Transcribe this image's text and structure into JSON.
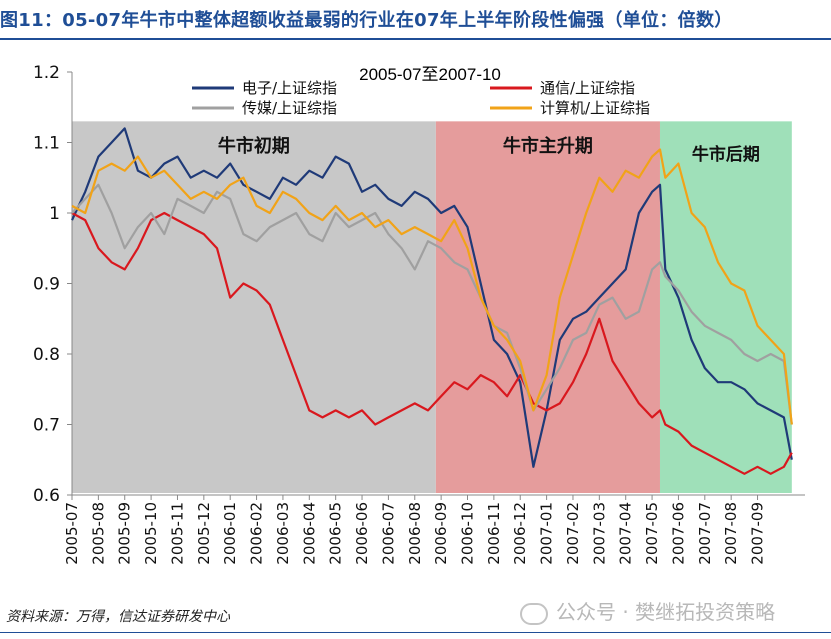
{
  "header": {
    "title": "图11：05-07年牛市中整体超额收益最弱的行业在07年上半年阶段性偏强（单位：倍数）"
  },
  "footer": {
    "source": "资料来源：万得，信达证券研发中心",
    "watermark": "公众号 · 樊继拓投资策略"
  },
  "chart_data": {
    "type": "line",
    "title": "2005-07至2007-10",
    "ylim": [
      0.6,
      1.2
    ],
    "yticks": [
      0.6,
      0.7,
      0.8,
      0.9,
      1,
      1.1,
      1.2
    ],
    "ytick_labels": [
      "0.6",
      "0.7",
      "0.8",
      "0.9",
      "1",
      "1.1",
      "1.2"
    ],
    "xlim": [
      0,
      27.8
    ],
    "x_categories": [
      "2005-07",
      "2005-08",
      "2005-09",
      "2005-10",
      "2005-11",
      "2005-12",
      "2006-01",
      "2006-02",
      "2006-03",
      "2006-04",
      "2006-05",
      "2006-06",
      "2006-07",
      "2006-08",
      "2006-09",
      "2006-10",
      "2006-11",
      "2006-12",
      "2007-01",
      "2007-02",
      "2007-03",
      "2007-04",
      "2007-05",
      "2007-06",
      "2007-07",
      "2007-08",
      "2007-09"
    ],
    "grid": false,
    "legend_position": "top",
    "phases": [
      {
        "label": "牛市初期",
        "x_start": 0,
        "x_end": 13.8,
        "color": "#c8c8c8"
      },
      {
        "label": "牛市主升期",
        "x_start": 13.8,
        "x_end": 22.3,
        "color": "#e59c9c"
      },
      {
        "label": "牛市后期",
        "x_start": 22.3,
        "x_end": 27.3,
        "color": "#9fe0b9"
      }
    ],
    "series": [
      {
        "name": "电子/上证综指",
        "color": "#1f3a78",
        "x": [
          0,
          0.5,
          1,
          1.5,
          2,
          2.5,
          3,
          3.5,
          4,
          4.5,
          5,
          5.5,
          6,
          6.5,
          7,
          7.5,
          8,
          8.5,
          9,
          9.5,
          10,
          10.5,
          11,
          11.5,
          12,
          12.5,
          13,
          13.5,
          14,
          14.5,
          15,
          15.5,
          16,
          16.5,
          17,
          17.5,
          18,
          18.5,
          19,
          19.5,
          20,
          20.5,
          21,
          21.5,
          22,
          22.3,
          22.5,
          23,
          23.5,
          24,
          24.5,
          25,
          25.5,
          26,
          26.5,
          27,
          27.3
        ],
        "values": [
          0.99,
          1.03,
          1.08,
          1.1,
          1.12,
          1.06,
          1.05,
          1.07,
          1.08,
          1.05,
          1.06,
          1.05,
          1.07,
          1.04,
          1.03,
          1.02,
          1.05,
          1.04,
          1.06,
          1.05,
          1.08,
          1.07,
          1.03,
          1.04,
          1.02,
          1.01,
          1.03,
          1.02,
          1.0,
          1.01,
          0.98,
          0.9,
          0.82,
          0.8,
          0.76,
          0.64,
          0.72,
          0.82,
          0.85,
          0.86,
          0.88,
          0.9,
          0.92,
          1.0,
          1.03,
          1.04,
          0.92,
          0.88,
          0.82,
          0.78,
          0.76,
          0.76,
          0.75,
          0.73,
          0.72,
          0.71,
          0.65
        ]
      },
      {
        "name": "通信/上证综指",
        "color": "#d9181e",
        "x": [
          0,
          0.5,
          1,
          1.5,
          2,
          2.5,
          3,
          3.5,
          4,
          4.5,
          5,
          5.5,
          6,
          6.5,
          7,
          7.5,
          8,
          8.5,
          9,
          9.5,
          10,
          10.5,
          11,
          11.5,
          12,
          12.5,
          13,
          13.5,
          14,
          14.5,
          15,
          15.5,
          16,
          16.5,
          17,
          17.5,
          18,
          18.5,
          19,
          19.5,
          20,
          20.5,
          21,
          21.5,
          22,
          22.3,
          22.5,
          23,
          23.5,
          24,
          24.5,
          25,
          25.5,
          26,
          26.5,
          27,
          27.3
        ],
        "values": [
          1.0,
          0.99,
          0.95,
          0.93,
          0.92,
          0.95,
          0.99,
          1.0,
          0.99,
          0.98,
          0.97,
          0.95,
          0.88,
          0.9,
          0.89,
          0.87,
          0.82,
          0.77,
          0.72,
          0.71,
          0.72,
          0.71,
          0.72,
          0.7,
          0.71,
          0.72,
          0.73,
          0.72,
          0.74,
          0.76,
          0.75,
          0.77,
          0.76,
          0.74,
          0.77,
          0.73,
          0.72,
          0.73,
          0.76,
          0.8,
          0.85,
          0.79,
          0.76,
          0.73,
          0.71,
          0.72,
          0.7,
          0.69,
          0.67,
          0.66,
          0.65,
          0.64,
          0.63,
          0.64,
          0.63,
          0.64,
          0.66
        ]
      },
      {
        "name": "传媒/上证综指",
        "color": "#a0a0a0",
        "x": [
          0,
          0.5,
          1,
          1.5,
          2,
          2.5,
          3,
          3.5,
          4,
          4.5,
          5,
          5.5,
          6,
          6.5,
          7,
          7.5,
          8,
          8.5,
          9,
          9.5,
          10,
          10.5,
          11,
          11.5,
          12,
          12.5,
          13,
          13.5,
          14,
          14.5,
          15,
          15.5,
          16,
          16.5,
          17,
          17.5,
          18,
          18.5,
          19,
          19.5,
          20,
          20.5,
          21,
          21.5,
          22,
          22.3,
          22.5,
          23,
          23.5,
          24,
          24.5,
          25,
          25.5,
          26,
          26.5,
          27,
          27.3
        ],
        "values": [
          1.0,
          1.02,
          1.04,
          1.0,
          0.95,
          0.98,
          1.0,
          0.97,
          1.02,
          1.01,
          1.0,
          1.03,
          1.02,
          0.97,
          0.96,
          0.98,
          0.99,
          1.0,
          0.97,
          0.96,
          1.0,
          0.98,
          0.99,
          1.0,
          0.97,
          0.95,
          0.92,
          0.96,
          0.95,
          0.93,
          0.92,
          0.88,
          0.84,
          0.83,
          0.78,
          0.72,
          0.75,
          0.78,
          0.82,
          0.83,
          0.87,
          0.88,
          0.85,
          0.86,
          0.92,
          0.93,
          0.91,
          0.89,
          0.86,
          0.84,
          0.83,
          0.82,
          0.8,
          0.79,
          0.8,
          0.79,
          0.7
        ]
      },
      {
        "name": "计算机/上证综指",
        "color": "#f1a318",
        "x": [
          0,
          0.5,
          1,
          1.5,
          2,
          2.5,
          3,
          3.5,
          4,
          4.5,
          5,
          5.5,
          6,
          6.5,
          7,
          7.5,
          8,
          8.5,
          9,
          9.5,
          10,
          10.5,
          11,
          11.5,
          12,
          12.5,
          13,
          13.5,
          14,
          14.5,
          15,
          15.5,
          16,
          16.5,
          17,
          17.5,
          18,
          18.5,
          19,
          19.5,
          20,
          20.5,
          21,
          21.5,
          22,
          22.3,
          22.5,
          23,
          23.5,
          24,
          24.5,
          25,
          25.5,
          26,
          26.5,
          27,
          27.3
        ],
        "values": [
          1.01,
          1.0,
          1.06,
          1.07,
          1.06,
          1.08,
          1.05,
          1.06,
          1.04,
          1.02,
          1.03,
          1.02,
          1.04,
          1.05,
          1.01,
          1.0,
          1.03,
          1.02,
          1.0,
          0.99,
          1.01,
          0.99,
          1.0,
          0.98,
          0.99,
          0.97,
          0.98,
          0.97,
          0.96,
          0.99,
          0.95,
          0.88,
          0.84,
          0.82,
          0.79,
          0.72,
          0.77,
          0.88,
          0.94,
          1.0,
          1.05,
          1.03,
          1.06,
          1.05,
          1.08,
          1.09,
          1.05,
          1.07,
          1.0,
          0.98,
          0.93,
          0.9,
          0.89,
          0.84,
          0.82,
          0.8,
          0.7
        ]
      }
    ]
  }
}
